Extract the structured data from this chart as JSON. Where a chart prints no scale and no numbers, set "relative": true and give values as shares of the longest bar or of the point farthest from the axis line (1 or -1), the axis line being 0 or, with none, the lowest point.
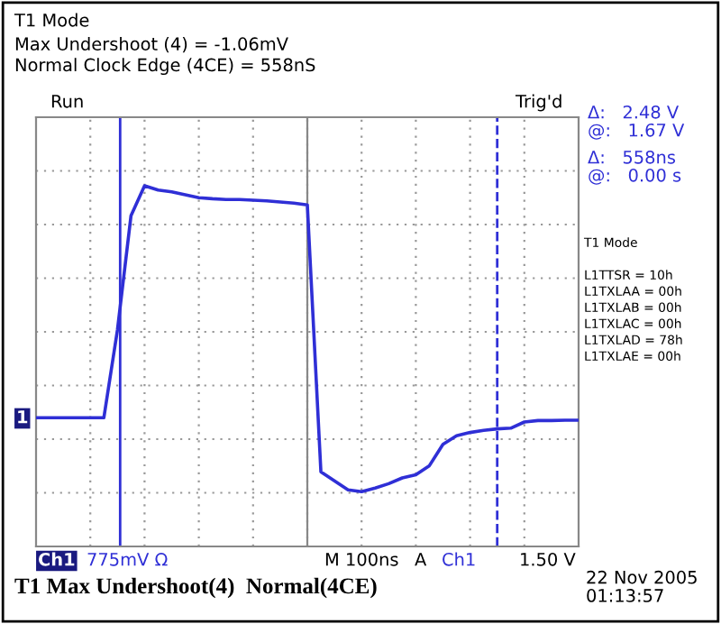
{
  "chart_data": {
    "type": "line",
    "relative": true,
    "title": "T1 Mode",
    "subtitle": "Max Undershoot (4) = -1.06mV\nNormal Clock Edge (4CE) = 558nS",
    "categories": [
      null,
      null,
      null,
      null,
      null,
      null,
      null,
      null,
      null,
      null,
      null,
      null,
      null,
      null,
      null,
      null,
      null,
      null,
      null,
      null,
      null,
      null,
      null,
      null,
      null,
      null,
      null,
      null,
      null,
      null,
      null,
      null,
      null,
      null,
      null,
      null,
      null,
      null,
      null,
      null,
      null
    ],
    "series": [
      {
        "color": "#2f2fd6",
        "values": [
          0.357,
          0.357,
          0.357,
          0.357,
          0.357,
          0.357,
          0.6,
          0.917,
          1,
          0.988,
          0.983,
          0.975,
          0.967,
          0.964,
          0.962,
          0.962,
          0.96,
          0.958,
          0.955,
          0.952,
          0.947,
          0.207,
          0.182,
          0.157,
          0.152,
          0.162,
          0.174,
          0.19,
          0.199,
          0.224,
          0.283,
          0.307,
          0.316,
          0.322,
          0.326,
          0.328,
          0.345,
          0.349,
          0.349,
          0.35,
          0.35
        ]
      }
    ],
    "grid": true,
    "line_style": "solid",
    "marker": "none",
    "annotations": [
      "Run",
      "Trig'd",
      "Δ:   2.48 V",
      "@:   1.67 V",
      "Δ:   558ns",
      "@:   0.00 s",
      "T1 Mode",
      "L1TTSR = 10h",
      "L1TXLAA = 00h",
      "L1TXLAB = 00h",
      "L1TXLAC = 00h",
      "L1TXLAD = 78h",
      "L1TXLAE = 00h",
      "1",
      "Ch1",
      "775mV Ω",
      "M 100ns",
      "A",
      "Ch1",
      "1.50 V",
      "T1 Max Undershoot(4)  Normal(4CE)",
      "22 Nov 2005\n01:13:57"
    ]
  }
}
